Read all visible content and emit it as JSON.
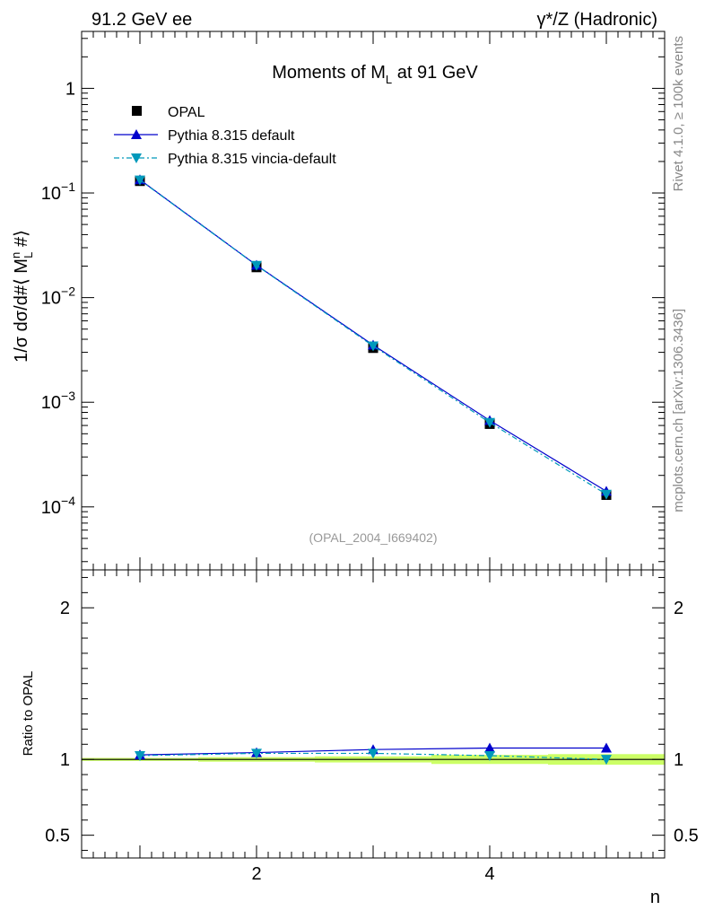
{
  "header": {
    "left": "91.2 GeV ee",
    "right": "γ*/Z (Hadronic)"
  },
  "side_labels": {
    "rivet": "Rivet 4.1.0, ≥ 100k events",
    "mcplots": "mcplots.cern.ch [arXiv:1306.3436]"
  },
  "colors": {
    "opal": "#000000",
    "default": "#0000cc",
    "vincia": "#0099bb",
    "band": "#ccff66"
  },
  "chart_data": [
    {
      "type": "line",
      "scale": "log",
      "title": "Moments of M_L at 91 GeV",
      "title_parts": {
        "pre": "Moments of M",
        "sub": "L",
        "post": " at 91 GeV"
      },
      "ylabel": "1/σ  dσ/d#⟨ M_L^n #⟩",
      "ylabel_parts": {
        "pre": "1/σ  dσ/d#⟨ M",
        "sup": "n",
        "sub": "L",
        "post": " #⟩"
      },
      "xlim": [
        0.5,
        5.5
      ],
      "ylim": [
        2.5e-05,
        3.5
      ],
      "x": [
        1,
        2,
        3,
        4,
        5
      ],
      "y_ticks": [
        {
          "value": 1,
          "base": "1",
          "exp": ""
        },
        {
          "value": 0.1,
          "base": "10",
          "exp": "−1"
        },
        {
          "value": 0.01,
          "base": "10",
          "exp": "−2"
        },
        {
          "value": 0.001,
          "base": "10",
          "exp": "−3"
        },
        {
          "value": 0.0001,
          "base": "10",
          "exp": "−4"
        }
      ],
      "series": [
        {
          "name": "OPAL",
          "marker": "square",
          "values": [
            0.13,
            0.0195,
            0.0033,
            0.00062,
            0.00013
          ]
        },
        {
          "name": "Pythia 8.315 default",
          "marker": "triangle-up",
          "values": [
            0.134,
            0.0204,
            0.00352,
            0.00067,
            0.000141
          ]
        },
        {
          "name": "Pythia 8.315 vincia-default",
          "marker": "triangle-down",
          "values": [
            0.133,
            0.0203,
            0.00345,
            0.00064,
            0.000132
          ]
        }
      ],
      "legend": [
        "OPAL",
        "Pythia 8.315 default",
        "Pythia 8.315 vincia-default"
      ],
      "legend_position": "top-left",
      "annotation": "(OPAL_2004_I669402)"
    },
    {
      "type": "line",
      "scale": "linear",
      "xlabel": "n",
      "ylabel": "Ratio to OPAL",
      "xlim": [
        0.5,
        5.5
      ],
      "ylim": [
        0.35,
        2.25
      ],
      "x": [
        1,
        2,
        3,
        4,
        5
      ],
      "x_ticks": [
        2,
        4
      ],
      "y_ticks": [
        {
          "value": 0.5,
          "label": "0.5"
        },
        {
          "value": 1,
          "label": "1"
        },
        {
          "value": 2,
          "label": "2"
        }
      ],
      "band": {
        "x": [
          0.5,
          1.5,
          2.5,
          3.5,
          4.5,
          5.5
        ],
        "low": [
          0.99,
          0.985,
          0.98,
          0.97,
          0.965,
          0.965
        ],
        "high": [
          1.01,
          1.015,
          1.02,
          1.03,
          1.035,
          1.035
        ]
      },
      "series": [
        {
          "name": "Pythia 8.315 default",
          "marker": "triangle-up",
          "values": [
            1.03,
            1.045,
            1.065,
            1.075,
            1.075
          ]
        },
        {
          "name": "Pythia 8.315 vincia-default",
          "marker": "triangle-down",
          "values": [
            1.025,
            1.04,
            1.04,
            1.025,
            1.0
          ]
        }
      ]
    }
  ]
}
